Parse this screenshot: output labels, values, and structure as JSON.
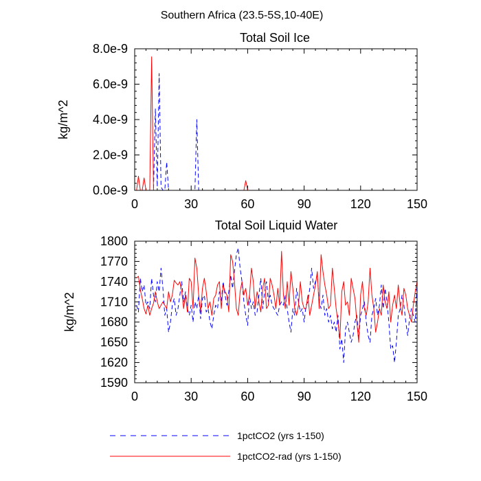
{
  "figure_title": "Southern Africa (23.5-5S,10-40E)",
  "colors": {
    "series1": "#0000ff",
    "series2": "#ff0000",
    "axis": "#000000"
  },
  "legend": {
    "position": "bottom",
    "items": [
      {
        "label": "1pctCO2 (yrs 1-150)",
        "color": "#0000ff",
        "style": "dashed"
      },
      {
        "label": "1pctCO2-rad (yrs 1-150)",
        "color": "#ff0000",
        "style": "solid"
      }
    ]
  },
  "chart_data": [
    {
      "type": "line",
      "title": "Total Soil Ice",
      "xlabel": "",
      "ylabel": "kg/m^2",
      "xlim": [
        0,
        150
      ],
      "ylim": [
        0,
        8e-09
      ],
      "xticks": [
        0,
        30,
        60,
        90,
        120,
        150
      ],
      "xtick_labels": [
        "0",
        "30",
        "60",
        "90",
        "120",
        "150"
      ],
      "yticks": [
        0,
        2e-09,
        4e-09,
        6e-09,
        8e-09
      ],
      "ytick_labels": [
        "0.0e-9",
        "2.0e-9",
        "4.0e-9",
        "6.0e-9",
        "8.0e-9"
      ],
      "grid": false,
      "series": [
        {
          "name": "1pctCO2 (yrs 1-150)",
          "style": "dashed",
          "x": [
            0,
            9,
            10,
            11,
            12,
            13,
            14,
            15,
            16,
            17,
            18,
            19,
            20,
            32,
            33,
            34,
            35,
            36,
            150
          ],
          "y": [
            0,
            0,
            0,
            4.6e-09,
            2e-10,
            6.6e-09,
            2e-10,
            0,
            0,
            1.6e-09,
            0,
            0,
            0,
            0,
            4e-09,
            0,
            0,
            0,
            0
          ]
        },
        {
          "name": "1pctCO2-rad (yrs 1-150)",
          "style": "solid",
          "x": [
            0,
            1,
            2,
            3,
            4,
            5,
            6,
            7,
            8,
            9,
            10,
            11,
            57,
            58,
            59,
            60,
            150
          ],
          "y": [
            0,
            0,
            8e-10,
            0,
            0,
            7e-10,
            0,
            0,
            0,
            7.55e-09,
            0,
            0,
            0,
            0,
            5.5e-10,
            0,
            0
          ]
        }
      ]
    },
    {
      "type": "line",
      "title": "Total Soil Liquid Water",
      "xlabel": "",
      "ylabel": "kg/m^2",
      "xlim": [
        0,
        150
      ],
      "ylim": [
        1590,
        1800
      ],
      "xticks": [
        0,
        30,
        60,
        90,
        120,
        150
      ],
      "xtick_labels": [
        "0",
        "30",
        "60",
        "90",
        "120",
        "150"
      ],
      "yticks": [
        1590,
        1620,
        1650,
        1680,
        1710,
        1740,
        1770,
        1800
      ],
      "ytick_labels": [
        "1590",
        "1620",
        "1650",
        "1680",
        "1710",
        "1740",
        "1770",
        "1800"
      ],
      "grid": false,
      "series": [
        {
          "name": "1pctCO2 (yrs 1-150)",
          "style": "dashed",
          "x": [
            1,
            2,
            3,
            4,
            5,
            6,
            7,
            8,
            9,
            10,
            11,
            12,
            13,
            14,
            15,
            16,
            17,
            18,
            19,
            20,
            21,
            22,
            23,
            24,
            25,
            26,
            27,
            28,
            29,
            30,
            31,
            32,
            33,
            34,
            35,
            36,
            37,
            38,
            39,
            40,
            41,
            42,
            43,
            44,
            45,
            46,
            47,
            48,
            49,
            50,
            51,
            52,
            53,
            54,
            55,
            56,
            57,
            58,
            59,
            60,
            61,
            62,
            63,
            64,
            65,
            66,
            67,
            68,
            69,
            70,
            71,
            72,
            73,
            74,
            75,
            76,
            77,
            78,
            79,
            80,
            81,
            82,
            83,
            84,
            85,
            86,
            87,
            88,
            89,
            90,
            91,
            92,
            93,
            94,
            95,
            96,
            97,
            98,
            99,
            100,
            101,
            102,
            103,
            104,
            105,
            106,
            107,
            108,
            109,
            110,
            111,
            112,
            113,
            114,
            115,
            116,
            117,
            118,
            119,
            120,
            121,
            122,
            123,
            124,
            125,
            126,
            127,
            128,
            129,
            130,
            131,
            132,
            133,
            134,
            135,
            136,
            137,
            138,
            139,
            140,
            141,
            142,
            143,
            144,
            145,
            146,
            147,
            148,
            149,
            150
          ],
          "y": [
            1705,
            1695,
            1745,
            1725,
            1735,
            1705,
            1710,
            1700,
            1745,
            1720,
            1710,
            1740,
            1725,
            1760,
            1730,
            1690,
            1700,
            1665,
            1680,
            1705,
            1715,
            1690,
            1700,
            1720,
            1740,
            1710,
            1725,
            1700,
            1690,
            1705,
            1680,
            1710,
            1700,
            1720,
            1685,
            1715,
            1720,
            1695,
            1700,
            1680,
            1670,
            1690,
            1705,
            1700,
            1725,
            1710,
            1740,
            1720,
            1705,
            1725,
            1750,
            1730,
            1755,
            1780,
            1790,
            1760,
            1740,
            1710,
            1690,
            1675,
            1720,
            1700,
            1710,
            1690,
            1695,
            1720,
            1745,
            1700,
            1725,
            1740,
            1710,
            1720,
            1705,
            1700,
            1695,
            1690,
            1705,
            1710,
            1705,
            1720,
            1700,
            1680,
            1665,
            1700,
            1690,
            1730,
            1710,
            1695,
            1700,
            1680,
            1705,
            1710,
            1730,
            1760,
            1730,
            1740,
            1750,
            1710,
            1700,
            1720,
            1690,
            1700,
            1680,
            1690,
            1670,
            1680,
            1665,
            1690,
            1640,
            1655,
            1620,
            1670,
            1680,
            1665,
            1650,
            1660,
            1680,
            1690,
            1655,
            1690,
            1700,
            1710,
            1680,
            1660,
            1650,
            1690,
            1700,
            1715,
            1690,
            1705,
            1735,
            1700,
            1730,
            1710,
            1680,
            1640,
            1645,
            1620,
            1650,
            1690,
            1700,
            1720,
            1705,
            1680,
            1660,
            1685,
            1700,
            1690,
            1680,
            1735
          ]
        },
        {
          "name": "1pctCO2-rad (yrs 1-150)",
          "style": "solid",
          "x": [
            1,
            2,
            3,
            4,
            5,
            6,
            7,
            8,
            9,
            10,
            11,
            12,
            13,
            14,
            15,
            16,
            17,
            18,
            19,
            20,
            21,
            22,
            23,
            24,
            25,
            26,
            27,
            28,
            29,
            30,
            31,
            32,
            33,
            34,
            35,
            36,
            37,
            38,
            39,
            40,
            41,
            42,
            43,
            44,
            45,
            46,
            47,
            48,
            49,
            50,
            51,
            52,
            53,
            54,
            55,
            56,
            57,
            58,
            59,
            60,
            61,
            62,
            63,
            64,
            65,
            66,
            67,
            68,
            69,
            70,
            71,
            72,
            73,
            74,
            75,
            76,
            77,
            78,
            79,
            80,
            81,
            82,
            83,
            84,
            85,
            86,
            87,
            88,
            89,
            90,
            91,
            92,
            93,
            94,
            95,
            96,
            97,
            98,
            99,
            100,
            101,
            102,
            103,
            104,
            105,
            106,
            107,
            108,
            109,
            110,
            111,
            112,
            113,
            114,
            115,
            116,
            117,
            118,
            119,
            120,
            121,
            122,
            123,
            124,
            125,
            126,
            127,
            128,
            129,
            130,
            131,
            132,
            133,
            134,
            135,
            136,
            137,
            138,
            139,
            140,
            141,
            142,
            143,
            144,
            145,
            146,
            147,
            148,
            149,
            150
          ],
          "y": [
            1745,
            1748,
            1728,
            1715,
            1700,
            1692,
            1705,
            1690,
            1700,
            1708,
            1725,
            1710,
            1700,
            1705,
            1710,
            1705,
            1700,
            1725,
            1710,
            1720,
            1742,
            1738,
            1735,
            1740,
            1725,
            1700,
            1720,
            1695,
            1745,
            1740,
            1700,
            1775,
            1760,
            1720,
            1695,
            1730,
            1745,
            1725,
            1700,
            1710,
            1690,
            1715,
            1720,
            1735,
            1740,
            1700,
            1735,
            1725,
            1720,
            1695,
            1780,
            1770,
            1740,
            1700,
            1690,
            1725,
            1740,
            1720,
            1730,
            1705,
            1720,
            1760,
            1740,
            1700,
            1725,
            1710,
            1695,
            1730,
            1745,
            1700,
            1705,
            1745,
            1735,
            1720,
            1700,
            1730,
            1705,
            1785,
            1720,
            1700,
            1740,
            1705,
            1755,
            1730,
            1700,
            1690,
            1705,
            1740,
            1710,
            1700,
            1700,
            1720,
            1690,
            1705,
            1720,
            1735,
            1755,
            1700,
            1780,
            1755,
            1735,
            1720,
            1700,
            1705,
            1760,
            1730,
            1700,
            1680,
            1655,
            1725,
            1740,
            1705,
            1710,
            1690,
            1745,
            1730,
            1715,
            1680,
            1650,
            1720,
            1740,
            1700,
            1690,
            1710,
            1760,
            1720,
            1700,
            1665,
            1680,
            1700,
            1690,
            1735,
            1710,
            1700,
            1725,
            1680,
            1705,
            1720,
            1700,
            1735,
            1705,
            1690,
            1730,
            1720,
            1700,
            1690,
            1680,
            1705,
            1725,
            1740
          ]
        }
      ]
    }
  ]
}
